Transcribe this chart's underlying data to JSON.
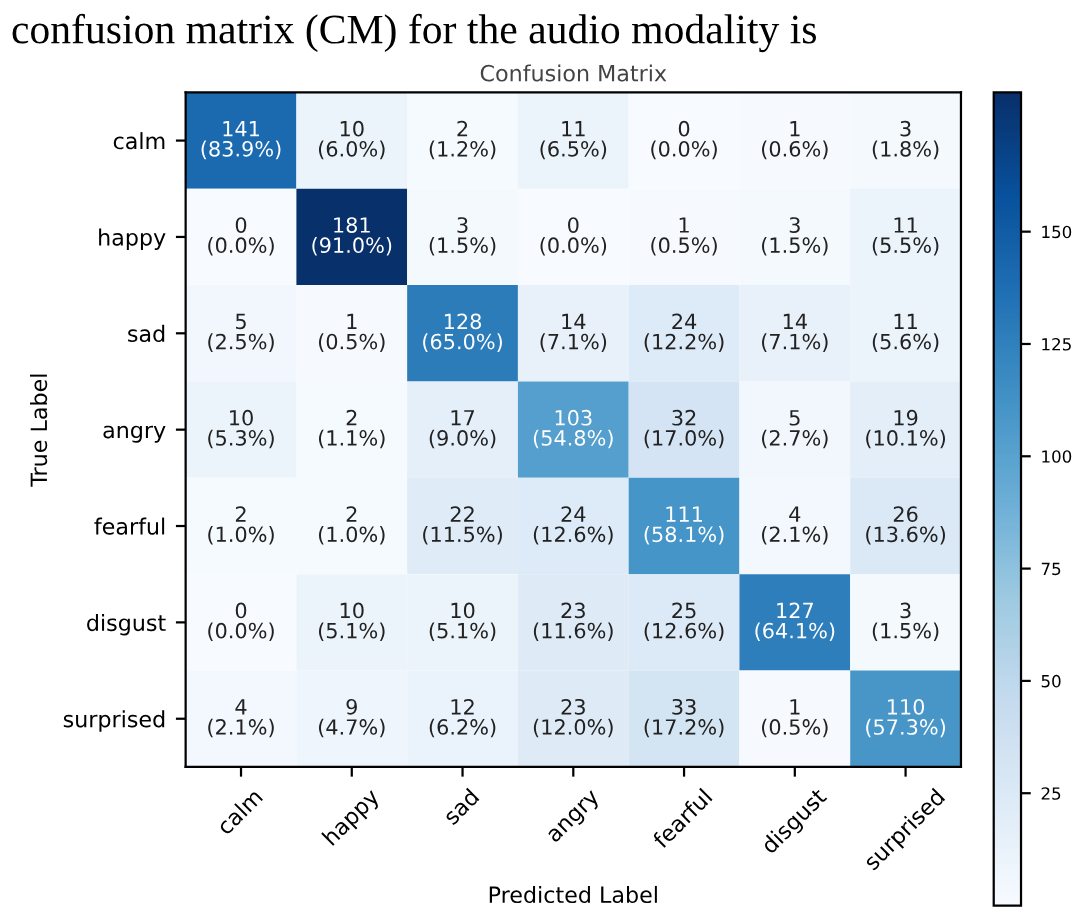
{
  "chart_data": {
    "type": "heatmap",
    "title": "Confusion Matrix",
    "xlabel": "Predicted Label",
    "ylabel": "True Label",
    "annotations": [
      "confusion matrix (CM) for the audio modality is"
    ],
    "categories": [
      "calm",
      "happy",
      "sad",
      "angry",
      "fearful",
      "disgust",
      "surprised"
    ],
    "y_categories": [
      "calm",
      "happy",
      "sad",
      "angry",
      "fearful",
      "disgust",
      "surprised"
    ],
    "cells": [
      [
        141,
        10,
        2,
        11,
        0,
        1,
        3
      ],
      [
        0,
        181,
        3,
        0,
        1,
        3,
        11
      ],
      [
        5,
        1,
        128,
        14,
        24,
        14,
        11
      ],
      [
        10,
        2,
        17,
        103,
        32,
        5,
        19
      ],
      [
        2,
        2,
        22,
        24,
        111,
        4,
        26
      ],
      [
        0,
        10,
        10,
        23,
        25,
        127,
        3
      ],
      [
        4,
        9,
        12,
        23,
        33,
        1,
        110
      ]
    ],
    "cell_labels": [
      [
        "141\n(83.9%)",
        "10\n(6.0%)",
        "2\n(1.2%)",
        "11\n(6.5%)",
        "0\n(0.0%)",
        "1\n(0.6%)",
        "3\n(1.8%)"
      ],
      [
        "0\n(0.0%)",
        "181\n(91.0%)",
        "3\n(1.5%)",
        "0\n(0.0%)",
        "1\n(0.5%)",
        "3\n(1.5%)",
        "11\n(5.5%)"
      ],
      [
        "5\n(2.5%)",
        "1\n(0.5%)",
        "128\n(65.0%)",
        "14\n(7.1%)",
        "24\n(12.2%)",
        "14\n(7.1%)",
        "11\n(5.6%)"
      ],
      [
        "10\n(5.3%)",
        "2\n(1.1%)",
        "17\n(9.0%)",
        "103\n(54.8%)",
        "32\n(17.0%)",
        "5\n(2.7%)",
        "19\n(10.1%)"
      ],
      [
        "2\n(1.0%)",
        "2\n(1.0%)",
        "22\n(11.5%)",
        "24\n(12.6%)",
        "111\n(58.1%)",
        "4\n(2.1%)",
        "26\n(13.6%)"
      ],
      [
        "0\n(0.0%)",
        "10\n(5.1%)",
        "10\n(5.1%)",
        "23\n(11.6%)",
        "25\n(12.6%)",
        "127\n(64.1%)",
        "3\n(1.5%)"
      ],
      [
        "4\n(2.1%)",
        "9\n(4.7%)",
        "12\n(6.2%)",
        "23\n(12.0%)",
        "33\n(17.2%)",
        "1\n(0.5%)",
        "110\n(57.3%)"
      ]
    ],
    "clim": [
      0,
      181
    ],
    "cticks": [
      25,
      50,
      75,
      100,
      125,
      150
    ]
  }
}
